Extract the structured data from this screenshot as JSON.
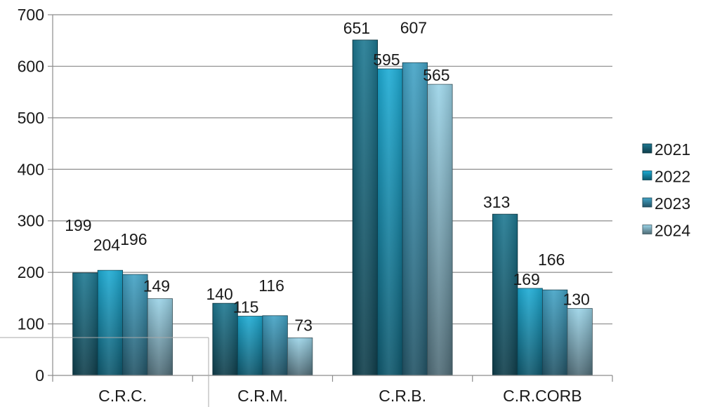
{
  "chart_data": {
    "type": "bar",
    "title": "",
    "xlabel": "",
    "ylabel": "",
    "ylim": [
      0,
      700
    ],
    "yticks": [
      0,
      100,
      200,
      300,
      400,
      500,
      600,
      700
    ],
    "grid": true,
    "legend_position": "right",
    "categories": [
      "C.R.C.",
      "C.R.M.",
      "C.R.B.",
      "C.R.CORB"
    ],
    "series": [
      {
        "name": "2021",
        "values": [
          199,
          140,
          651,
          313
        ],
        "color": "#1b6f86"
      },
      {
        "name": "2022",
        "values": [
          204,
          115,
          595,
          169
        ],
        "color": "#1a9ec4"
      },
      {
        "name": "2023",
        "values": [
          196,
          116,
          607,
          166
        ],
        "color": "#3d97b7"
      },
      {
        "name": "2024",
        "values": [
          149,
          73,
          565,
          130
        ],
        "color": "#8fc3d6"
      }
    ]
  }
}
